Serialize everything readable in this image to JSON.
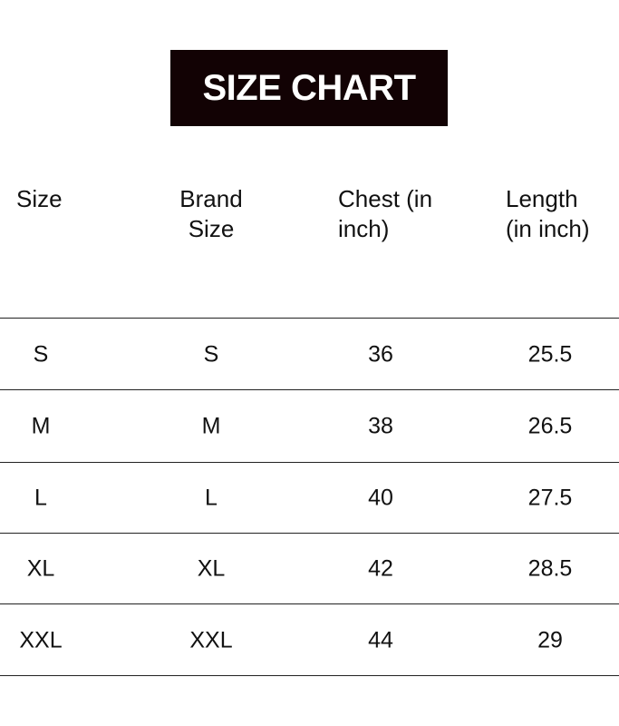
{
  "title": "SIZE CHART",
  "headers": {
    "size": [
      "Size"
    ],
    "brand_size": [
      "Brand",
      "Size"
    ],
    "chest": [
      "Chest (in",
      "inch)"
    ],
    "length": [
      "Length",
      "(in inch)"
    ]
  },
  "rows": [
    {
      "size": "S",
      "brand_size": "S",
      "chest": "36",
      "length": "25.5"
    },
    {
      "size": "M",
      "brand_size": "M",
      "chest": "38",
      "length": "26.5"
    },
    {
      "size": "L",
      "brand_size": "L",
      "chest": "40",
      "length": "27.5"
    },
    {
      "size": "XL",
      "brand_size": "XL",
      "chest": "42",
      "length": "28.5"
    },
    {
      "size": "XXL",
      "brand_size": "XXL",
      "chest": "44",
      "length": "29"
    }
  ]
}
